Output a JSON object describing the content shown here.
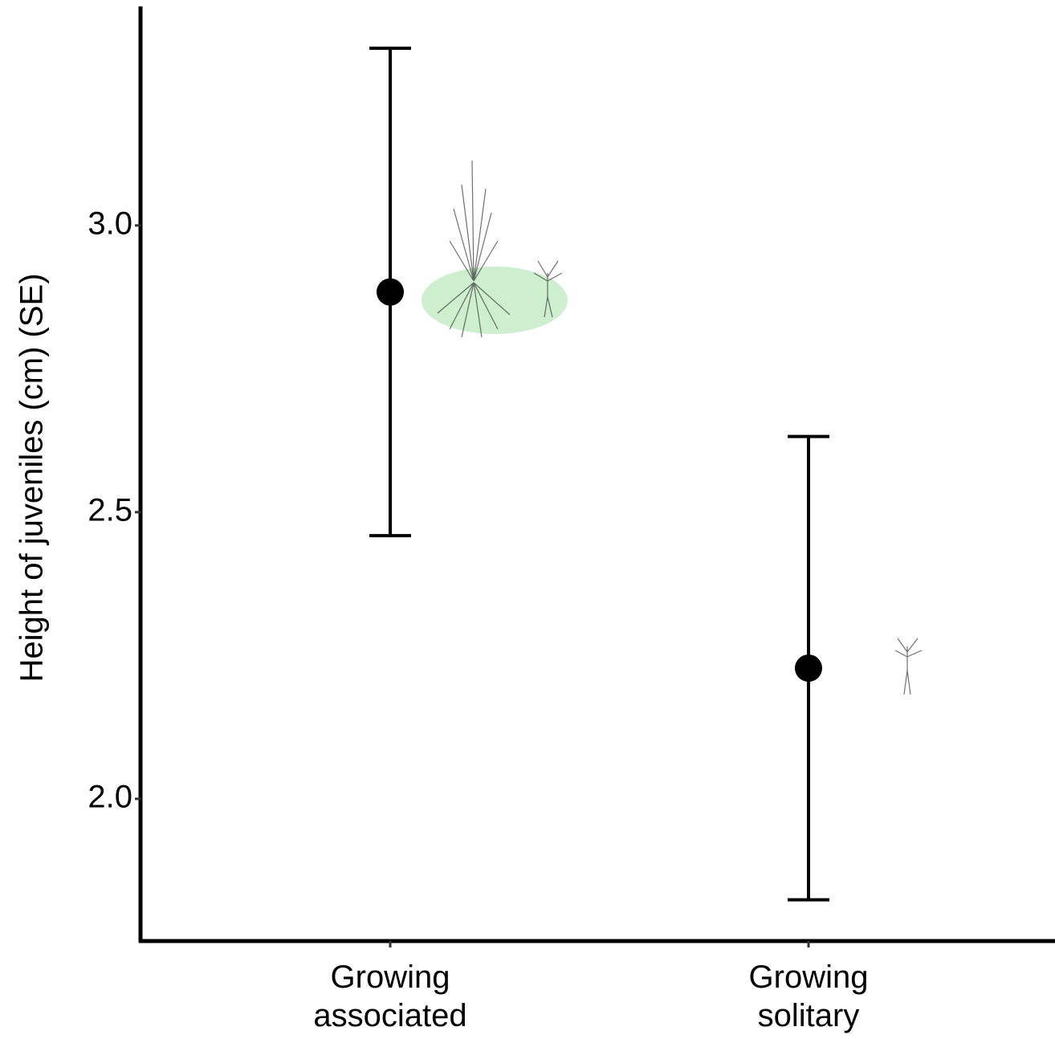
{
  "chart_data": {
    "type": "errorbar",
    "ylabel": "Height of juveniles (cm) (SE)",
    "categories": [
      "Growing associated",
      "Growing solitary"
    ],
    "values": [
      2.884,
      2.228
    ],
    "errors": [
      0.425,
      0.404
    ],
    "color": "#000000",
    "ylim": [
      1.752,
      3.382
    ],
    "yticks": [
      {
        "value": 2,
        "label": "2.0"
      },
      {
        "value": 2.5,
        "label": "2.5"
      },
      {
        "value": 3,
        "label": "3.0"
      }
    ],
    "grid": false
  }
}
